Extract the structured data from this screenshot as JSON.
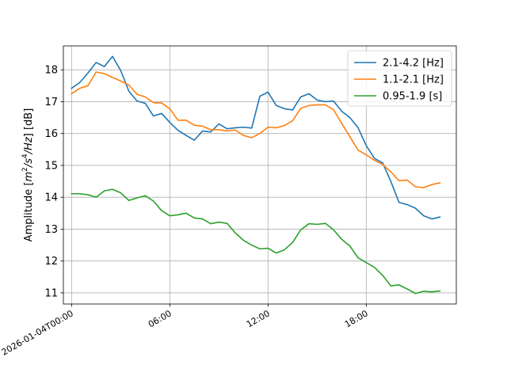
{
  "chart_data": {
    "type": "line",
    "title": "",
    "xlabel": "",
    "ylabel": "Amplitude [m²/s⁴/Hz] [dB]",
    "ylabel_parts": {
      "prefix": "Amplitude [",
      "m": "m",
      "sup2": "2",
      "s": "/s",
      "sup4": "4",
      "hz": "/Hz",
      "suffix": "] [dB]"
    },
    "xlim": [
      -0.5,
      23.5
    ],
    "ylim": [
      10.65,
      18.75
    ],
    "grid": true,
    "legend_position": "top-right",
    "x_ticks": [
      {
        "value": 0,
        "label": "2026-01-04T00:00"
      },
      {
        "value": 6,
        "label": "06:00"
      },
      {
        "value": 12,
        "label": "12:00"
      },
      {
        "value": 18,
        "label": "18:00"
      }
    ],
    "y_ticks": [
      11,
      12,
      13,
      14,
      15,
      16,
      17,
      18
    ],
    "x": [
      0,
      0.5,
      1,
      1.5,
      2,
      2.5,
      3,
      3.5,
      4,
      4.5,
      5,
      5.5,
      6,
      6.5,
      7,
      7.5,
      8,
      8.5,
      9,
      9.5,
      10,
      10.5,
      11,
      11.5,
      12,
      12.5,
      13,
      13.5,
      14,
      14.5,
      15,
      15.5,
      16,
      16.5,
      17,
      17.5,
      18,
      18.5,
      19,
      19.5,
      20,
      20.5,
      21,
      21.5,
      22,
      22.5
    ],
    "series": [
      {
        "name": "2.1-4.2 [Hz]",
        "color": "#1f77b4",
        "values": [
          17.42,
          17.6,
          17.9,
          18.23,
          18.1,
          18.42,
          17.98,
          17.33,
          17.02,
          16.95,
          16.55,
          16.63,
          16.35,
          16.1,
          15.94,
          15.79,
          16.08,
          16.05,
          16.3,
          16.15,
          16.18,
          16.2,
          16.17,
          17.17,
          17.3,
          16.88,
          16.78,
          16.74,
          17.15,
          17.25,
          17.05,
          17.0,
          17.02,
          16.7,
          16.5,
          16.18,
          15.62,
          15.22,
          15.08,
          14.5,
          13.84,
          13.77,
          13.66,
          13.42,
          13.32,
          13.38
        ]
      },
      {
        "name": "1.1-2.1 [Hz]",
        "color": "#ff7f0e",
        "values": [
          17.25,
          17.42,
          17.5,
          17.93,
          17.88,
          17.76,
          17.65,
          17.52,
          17.23,
          17.15,
          16.97,
          16.96,
          16.78,
          16.42,
          16.42,
          16.26,
          16.23,
          16.12,
          16.12,
          16.08,
          16.11,
          15.94,
          15.87,
          16.0,
          16.2,
          16.18,
          16.25,
          16.4,
          16.79,
          16.88,
          16.9,
          16.9,
          16.75,
          16.32,
          15.9,
          15.48,
          15.33,
          15.16,
          15.03,
          14.8,
          14.52,
          14.54,
          14.33,
          14.3,
          14.4,
          14.45
        ]
      },
      {
        "name": "0.95-1.9 [s]",
        "color": "#2ca02c",
        "values": [
          14.11,
          14.11,
          14.08,
          14.0,
          14.2,
          14.25,
          14.14,
          13.9,
          13.98,
          14.05,
          13.88,
          13.58,
          13.42,
          13.45,
          13.5,
          13.35,
          13.32,
          13.17,
          13.22,
          13.18,
          12.88,
          12.65,
          12.5,
          12.38,
          12.4,
          12.25,
          12.35,
          12.58,
          12.98,
          13.17,
          13.15,
          13.18,
          12.98,
          12.68,
          12.47,
          12.1,
          11.95,
          11.8,
          11.55,
          11.22,
          11.25,
          11.12,
          10.98,
          11.05,
          11.03,
          11.06
        ]
      }
    ]
  }
}
